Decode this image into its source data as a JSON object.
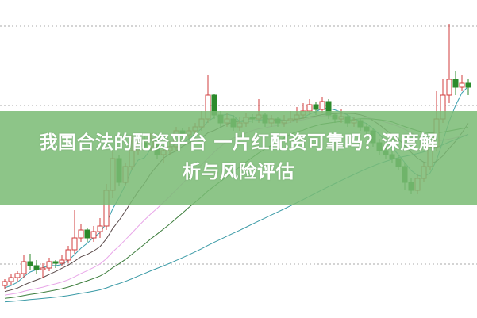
{
  "banner": {
    "line1": "我国合法的配资平台 一片红配资可靠吗？深度解",
    "line2": "析与风险评估"
  },
  "colors": {
    "up": "#d23c3c",
    "down": "#2b8a2b",
    "grid": "#aaaaaa",
    "banner": "#7abb74",
    "ma_lines": [
      "#3a9fae",
      "#5a4a4a",
      "#e8a6e8",
      "#3c7d3c",
      "#3a9aa6"
    ]
  },
  "chart_data": {
    "type": "candlestick",
    "grid": "horizontal dotted",
    "ohlc": [
      [
        40,
        48,
        36,
        45
      ],
      [
        45,
        55,
        40,
        50
      ],
      [
        50,
        58,
        45,
        55
      ],
      [
        55,
        78,
        50,
        70
      ],
      [
        70,
        80,
        60,
        65
      ],
      [
        65,
        72,
        55,
        60
      ],
      [
        60,
        68,
        50,
        62
      ],
      [
        62,
        75,
        58,
        70
      ],
      [
        70,
        72,
        62,
        68
      ],
      [
        68,
        78,
        64,
        72
      ],
      [
        72,
        90,
        68,
        85
      ],
      [
        85,
        135,
        80,
        100
      ],
      [
        100,
        118,
        95,
        110
      ],
      [
        110,
        112,
        95,
        100
      ],
      [
        100,
        115,
        95,
        108
      ],
      [
        108,
        125,
        100,
        115
      ],
      [
        115,
        168,
        110,
        160
      ],
      [
        160,
        210,
        150,
        200
      ],
      [
        200,
        205,
        165,
        170
      ],
      [
        170,
        195,
        165,
        190
      ],
      [
        190,
        230,
        185,
        210
      ],
      [
        210,
        225,
        205,
        220
      ],
      [
        220,
        228,
        210,
        215
      ],
      [
        215,
        232,
        210,
        225
      ],
      [
        225,
        230,
        200,
        205
      ],
      [
        205,
        215,
        195,
        210
      ],
      [
        210,
        222,
        205,
        215
      ],
      [
        215,
        240,
        210,
        235
      ],
      [
        235,
        238,
        225,
        230
      ],
      [
        230,
        240,
        225,
        235
      ],
      [
        235,
        245,
        230,
        240
      ],
      [
        240,
        260,
        235,
        250
      ],
      [
        250,
        305,
        245,
        280
      ],
      [
        280,
        282,
        250,
        255
      ],
      [
        255,
        260,
        240,
        245
      ],
      [
        245,
        258,
        240,
        250
      ],
      [
        250,
        255,
        235,
        240
      ],
      [
        240,
        252,
        235,
        245
      ],
      [
        245,
        258,
        240,
        252
      ],
      [
        252,
        256,
        245,
        250
      ],
      [
        250,
        275,
        245,
        255
      ],
      [
        255,
        258,
        240,
        245
      ],
      [
        245,
        255,
        240,
        250
      ],
      [
        250,
        252,
        240,
        245
      ],
      [
        245,
        255,
        240,
        248
      ],
      [
        248,
        260,
        245,
        250
      ],
      [
        250,
        265,
        245,
        255
      ],
      [
        255,
        270,
        250,
        260
      ],
      [
        260,
        275,
        255,
        268
      ],
      [
        268,
        272,
        255,
        262
      ],
      [
        262,
        278,
        258,
        272
      ],
      [
        272,
        275,
        250,
        255
      ],
      [
        255,
        258,
        245,
        250
      ],
      [
        250,
        262,
        245,
        253
      ],
      [
        253,
        256,
        240,
        245
      ],
      [
        245,
        252,
        240,
        248
      ],
      [
        248,
        250,
        235,
        240
      ],
      [
        240,
        245,
        230,
        235
      ],
      [
        235,
        238,
        215,
        220
      ],
      [
        220,
        225,
        205,
        210
      ],
      [
        210,
        218,
        200,
        205
      ],
      [
        205,
        212,
        195,
        200
      ],
      [
        200,
        205,
        185,
        190
      ],
      [
        190,
        195,
        160,
        170
      ],
      [
        170,
        175,
        155,
        160
      ],
      [
        160,
        180,
        155,
        175
      ],
      [
        175,
        195,
        170,
        190
      ],
      [
        190,
        220,
        185,
        215
      ],
      [
        215,
        285,
        210,
        250
      ],
      [
        250,
        300,
        245,
        280
      ],
      [
        280,
        370,
        270,
        300
      ],
      [
        300,
        310,
        280,
        290
      ],
      [
        290,
        305,
        285,
        295
      ],
      [
        295,
        300,
        280,
        290
      ]
    ],
    "gridlines": [
      367,
      267,
      67
    ]
  }
}
